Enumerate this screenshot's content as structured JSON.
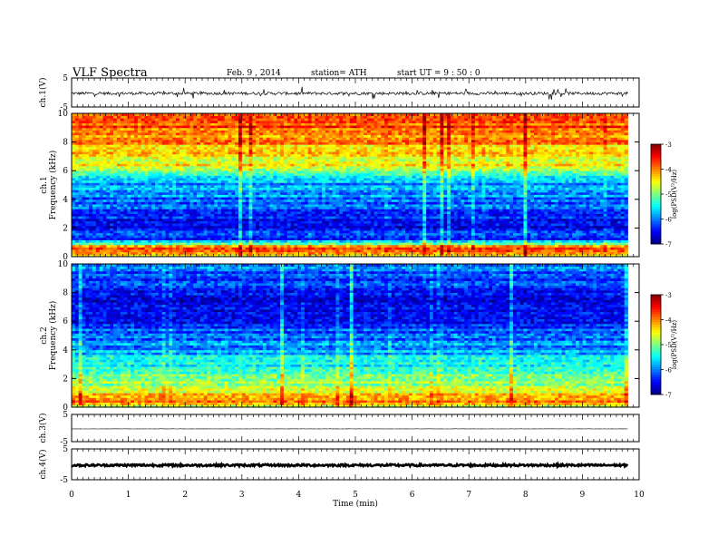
{
  "header": {
    "title": "VLF  Spectra",
    "date": "Feb. 9  , 2014",
    "station": "station= ATH",
    "start": "start  UT  =   9  : 50 : 0"
  },
  "chart_data": {
    "type": "heatmap",
    "xlabel": "Time  (min)",
    "xlim": [
      0,
      10
    ],
    "x_ticks": [
      "0",
      "1",
      "2",
      "3",
      "4",
      "5",
      "6",
      "7",
      "8",
      "9",
      "10"
    ],
    "data_end_min": 9.8,
    "panels": [
      {
        "kind": "waveform",
        "ylabel": "ch.1(V)",
        "ylim": [
          -5,
          5
        ],
        "y_ticks": [
          "5",
          "-5"
        ],
        "baseline": -0.3,
        "noise_amplitude": 0.5,
        "spike_amplitude": 2.0
      },
      {
        "kind": "spectrogram",
        "channel_label": "ch.1",
        "ylabel": "Frequency  (kHz)",
        "ylim": [
          0,
          10
        ],
        "y_ticks": [
          "0",
          "2",
          "4",
          "6",
          "8",
          "10"
        ],
        "colorbar": {
          "label": "log(PSD(V²/Hz)",
          "range": [
            -7,
            -3
          ],
          "ticks": [
            "-3",
            "-4",
            "-5",
            "-6",
            "-7"
          ]
        },
        "profile": [
          {
            "f": 0.0,
            "v": -4.7
          },
          {
            "f": 0.4,
            "v": -3.6
          },
          {
            "f": 0.8,
            "v": -4.4
          },
          {
            "f": 1.2,
            "v": -6.3
          },
          {
            "f": 2.0,
            "v": -6.5
          },
          {
            "f": 3.0,
            "v": -6.3
          },
          {
            "f": 4.0,
            "v": -6.0
          },
          {
            "f": 5.0,
            "v": -5.9
          },
          {
            "f": 5.8,
            "v": -5.4
          },
          {
            "f": 6.0,
            "v": -4.7
          },
          {
            "f": 7.0,
            "v": -4.4
          },
          {
            "f": 8.0,
            "v": -4.1
          },
          {
            "f": 9.0,
            "v": -3.8
          },
          {
            "f": 10.0,
            "v": -3.7
          }
        ]
      },
      {
        "kind": "spectrogram",
        "channel_label": "ch.2",
        "ylabel": "Frequency  (kHz)",
        "ylim": [
          0,
          10
        ],
        "y_ticks": [
          "0",
          "2",
          "4",
          "6",
          "8",
          "10"
        ],
        "colorbar": {
          "label": "log(PSD(V²/Hz)",
          "range": [
            -7,
            -3
          ],
          "ticks": [
            "-3",
            "-4",
            "-5",
            "-6",
            "-7"
          ]
        },
        "profile": [
          {
            "f": 0.0,
            "v": -5.0
          },
          {
            "f": 0.4,
            "v": -3.8
          },
          {
            "f": 0.8,
            "v": -4.0
          },
          {
            "f": 1.2,
            "v": -4.6
          },
          {
            "f": 2.0,
            "v": -5.1
          },
          {
            "f": 3.0,
            "v": -5.5
          },
          {
            "f": 4.0,
            "v": -5.8
          },
          {
            "f": 5.0,
            "v": -6.1
          },
          {
            "f": 6.0,
            "v": -6.4
          },
          {
            "f": 7.0,
            "v": -6.6
          },
          {
            "f": 8.0,
            "v": -6.5
          },
          {
            "f": 9.0,
            "v": -6.2
          },
          {
            "f": 10.0,
            "v": -6.0
          }
        ]
      },
      {
        "kind": "waveform",
        "ylabel": "ch.3(V)",
        "ylim": [
          -5,
          5
        ],
        "y_ticks": [
          "5",
          "-5"
        ],
        "baseline": -0.3,
        "noise_amplitude": 0.05,
        "spike_amplitude": 0
      },
      {
        "kind": "waveform",
        "ylabel": "ch.4(V)",
        "ylim": [
          -5,
          5
        ],
        "y_ticks": [
          "5",
          "-5"
        ],
        "baseline": -0.3,
        "noise_amplitude": 0.35,
        "spike_amplitude": 0
      }
    ]
  }
}
